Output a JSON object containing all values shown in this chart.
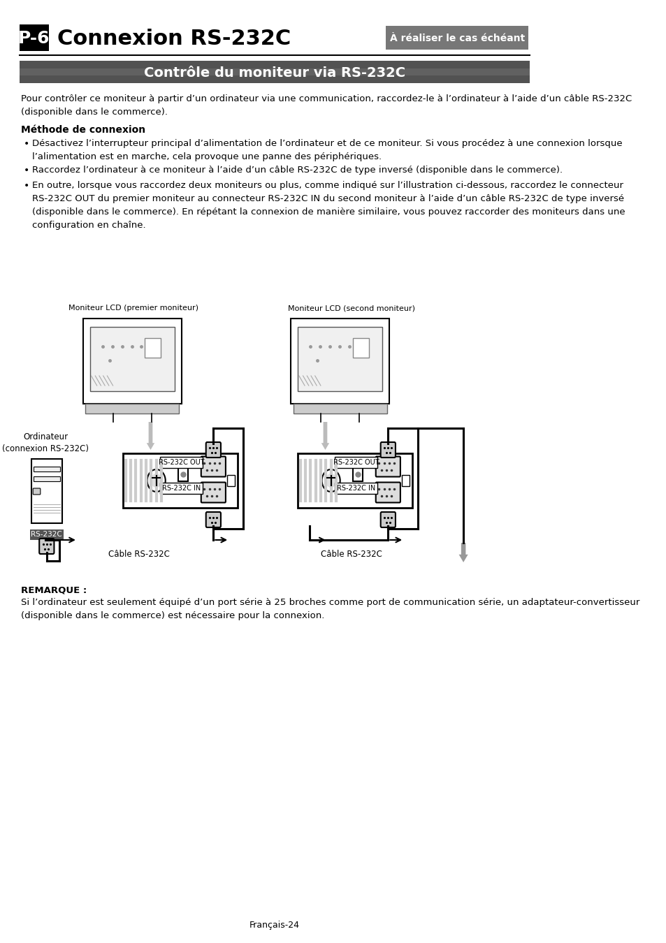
{
  "page_bg": "#ffffff",
  "header_title": "Connexion RS-232C",
  "header_label": "P-6",
  "header_badge": "À réaliser le cas échéant",
  "section_title": "Contrôle du moniteur via RS-232C",
  "intro_text": "Pour contrôler ce moniteur à partir d’un ordinateur via une communication, raccordez-le à l’ordinateur à l’aide d’un câble RS-232C\n(disponible dans le commerce).",
  "method_title": "Méthode de connexion",
  "bullet1": "Désactivez l’interrupteur principal d’alimentation de l’ordinateur et de ce moniteur. Si vous procédez à une connexion lorsque\nl’alimentation est en marche, cela provoque une panne des périphériques.",
  "bullet2": "Raccordez l’ordinateur à ce moniteur à l’aide d’un câble RS-232C de type inversé (disponible dans le commerce).",
  "bullet3": "En outre, lorsque vous raccordez deux moniteurs ou plus, comme indiqué sur l’illustration ci-dessous, raccordez le connecteur\nRS-232C OUT du premier moniteur au connecteur RS-232C IN du second moniteur à l’aide d’un câble RS-232C de type inversé\n(disponible dans le commerce). En répétant la connexion de manière similaire, vous pouvez raccorder des moniteurs dans une\nconfiguration en chaîne.",
  "label_monitor1": "Moniteur LCD (premier moniteur)",
  "label_monitor2": "Moniteur LCD (second moniteur)",
  "label_ordinateur": "Ordinateur\n(connexion RS-232C)",
  "label_rs232c": "RS-232C",
  "label_rs232c_out1": "RS-232C OUT",
  "label_rs232c_in1": "RS-232C IN",
  "label_rs232c_out2": "RS-232C OUT",
  "label_rs232c_in2": "RS-232C IN",
  "label_cable1": "Câble RS-232C",
  "label_cable2": "Câble RS-232C",
  "note_title": "REMARQUE :",
  "note_text": "Si l’ordinateur est seulement équipé d’un port série à 25 broches comme port de communication série, un adaptateur-convertisseur\n(disponible dans le commerce) est nécessaire pour la connexion.",
  "footer_text": "Français-24"
}
